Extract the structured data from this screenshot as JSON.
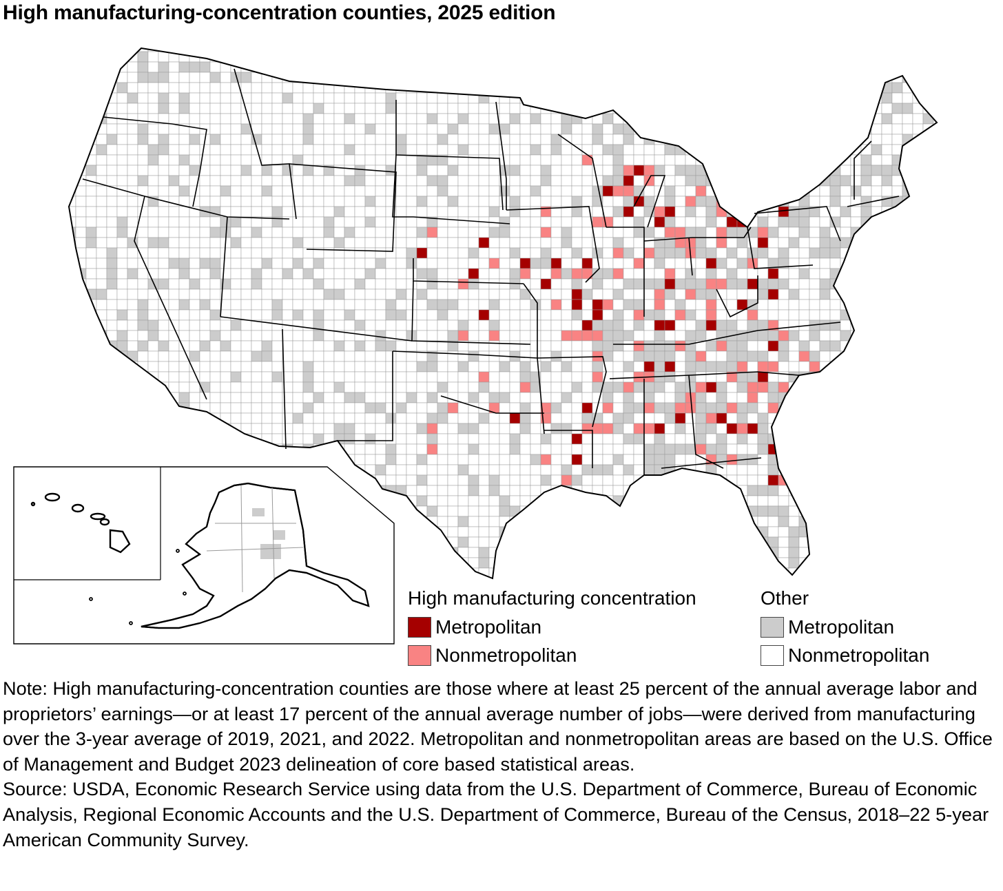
{
  "title": "High manufacturing-concentration counties, 2025 edition",
  "colors": {
    "high_metro": "#a50000",
    "high_nonmetro": "#f98383",
    "other_metro": "#cccccc",
    "other_nonmetro": "#ffffff",
    "outline": "#000000"
  },
  "legend": {
    "group1_heading": "High manufacturing concentration",
    "group1_item1": "Metropolitan",
    "group1_item2": "Nonmetropolitan",
    "group2_heading": "Other",
    "group2_item1": "Metropolitan",
    "group2_item2": "Nonmetropolitan"
  },
  "note": "Note: High manufacturing-concentration counties are those where at least 25 percent of the annual average labor and proprietors’ earnings—or at least 17 percent of the annual average number of jobs—were derived from manufacturing over the 3-year average of 2019, 2021, and 2022. Metropolitan and nonmetropolitan areas are based on the U.S. Office of Management and Budget 2023 delineation of core based statistical areas.",
  "source": "Source: USDA, Economic Research Service using data from the U.S. Department of Commerce, Bureau of Economic Analysis, Regional Economic Accounts and the U.S. Department of Commerce, Bureau of the Census, 2018–22 5-year American Community Survey."
}
